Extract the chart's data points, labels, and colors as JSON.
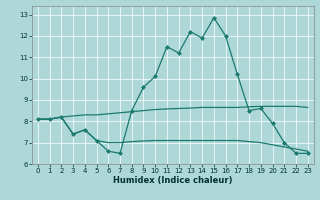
{
  "title": "",
  "xlabel": "Humidex (Indice chaleur)",
  "bg_color": "#aed8d8",
  "grid_color": "#ffffff",
  "line_color": "#1a7a6e",
  "xlim": [
    -0.5,
    23.5
  ],
  "ylim": [
    6.0,
    13.4
  ],
  "yticks": [
    6,
    7,
    8,
    9,
    10,
    11,
    12,
    13
  ],
  "xticks": [
    0,
    1,
    2,
    3,
    4,
    5,
    6,
    7,
    8,
    9,
    10,
    11,
    12,
    13,
    14,
    15,
    16,
    17,
    18,
    19,
    20,
    21,
    22,
    23
  ],
  "line1_x": [
    0,
    1,
    2,
    3,
    4,
    5,
    6,
    7,
    8,
    9,
    10,
    11,
    12,
    13,
    14,
    15,
    16,
    17,
    18,
    19,
    20,
    21,
    22,
    23
  ],
  "line1_y": [
    8.1,
    8.1,
    8.2,
    7.4,
    7.6,
    7.1,
    6.6,
    6.5,
    8.5,
    9.6,
    10.1,
    11.5,
    11.2,
    12.2,
    11.9,
    12.85,
    12.0,
    10.2,
    8.5,
    8.6,
    7.9,
    7.0,
    6.5,
    6.5
  ],
  "line2_x": [
    0,
    1,
    2,
    3,
    4,
    5,
    6,
    7,
    8,
    9,
    10,
    11,
    12,
    13,
    14,
    15,
    16,
    17,
    18,
    19,
    20,
    21,
    22,
    23
  ],
  "line2_y": [
    8.1,
    8.1,
    8.2,
    8.25,
    8.3,
    8.3,
    8.35,
    8.4,
    8.45,
    8.5,
    8.55,
    8.58,
    8.6,
    8.62,
    8.65,
    8.65,
    8.65,
    8.65,
    8.68,
    8.7,
    8.7,
    8.7,
    8.7,
    8.65
  ],
  "line3_x": [
    0,
    1,
    2,
    3,
    4,
    5,
    6,
    7,
    8,
    9,
    10,
    11,
    12,
    13,
    14,
    15,
    16,
    17,
    18,
    19,
    20,
    21,
    22,
    23
  ],
  "line3_y": [
    8.1,
    8.1,
    8.2,
    7.4,
    7.6,
    7.1,
    7.0,
    7.0,
    7.05,
    7.08,
    7.1,
    7.1,
    7.1,
    7.1,
    7.1,
    7.1,
    7.1,
    7.1,
    7.05,
    7.0,
    6.9,
    6.8,
    6.7,
    6.6
  ]
}
